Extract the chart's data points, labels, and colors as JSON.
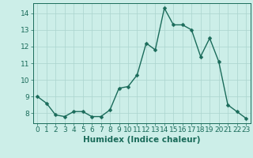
{
  "x": [
    0,
    1,
    2,
    3,
    4,
    5,
    6,
    7,
    8,
    9,
    10,
    11,
    12,
    13,
    14,
    15,
    16,
    17,
    18,
    19,
    20,
    21,
    22,
    23
  ],
  "y": [
    9.0,
    8.6,
    7.9,
    7.8,
    8.1,
    8.1,
    7.8,
    7.8,
    8.2,
    9.5,
    9.6,
    10.3,
    12.2,
    11.8,
    14.3,
    13.3,
    13.3,
    13.0,
    11.4,
    12.5,
    11.1,
    8.5,
    8.1,
    7.7
  ],
  "line_color": "#1a6b5a",
  "marker": "D",
  "marker_size": 2.5,
  "linewidth": 1.0,
  "xlabel": "Humidex (Indice chaleur)",
  "xlim": [
    -0.5,
    23.5
  ],
  "ylim": [
    7.4,
    14.6
  ],
  "yticks": [
    8,
    9,
    10,
    11,
    12,
    13,
    14
  ],
  "xticks": [
    0,
    1,
    2,
    3,
    4,
    5,
    6,
    7,
    8,
    9,
    10,
    11,
    12,
    13,
    14,
    15,
    16,
    17,
    18,
    19,
    20,
    21,
    22,
    23
  ],
  "bg_color": "#cceee8",
  "grid_color": "#aad4ce",
  "tick_color": "#1a6b5a",
  "xlabel_fontsize": 7.5,
  "tick_fontsize": 6.5
}
